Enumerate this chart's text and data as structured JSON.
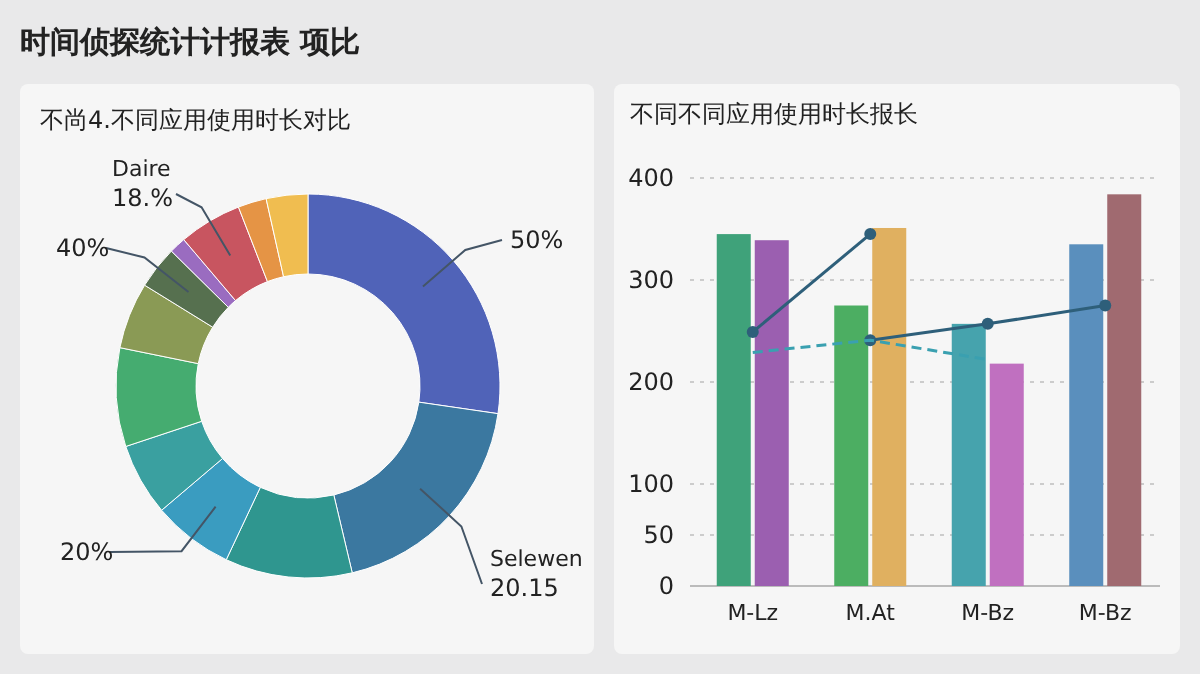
{
  "chart_data": [
    {
      "type": "donut",
      "title": "不尚4.不同应用使用时长对比",
      "annotations": [
        "时间侦探统计计报表 项比",
        "50%",
        "20.15",
        "20%",
        "40%",
        "18.%"
      ],
      "categories": [
        null,
        "Selewen",
        null,
        null,
        null,
        null,
        null,
        null,
        null,
        "Daire",
        null,
        null
      ],
      "values": [
        27.3,
        19,
        10.7,
        6.8,
        6.1,
        8.3,
        5.6,
        3.6,
        1.4,
        5.3,
        2.4,
        3.5
      ],
      "colors": [
        "#5063b8",
        "#3b78a0",
        "#2f968f",
        "#3a9cc0",
        "#3aa0a0",
        "#45ac70",
        "#8a9a55",
        "#56704f",
        "#9a6cc0",
        "#c85560",
        "#e59445",
        "#f0bd50"
      ]
    },
    {
      "type": "bar",
      "title": "不同不同应用使用时长报长",
      "categories": [
        "M-Lz",
        "M.At",
        "M-Bz",
        "M-Bz"
      ],
      "ylim": [
        0,
        400
      ],
      "yticks": [
        0,
        50,
        100,
        200,
        300,
        400
      ],
      "grid": "y",
      "series": [
        {
          "values": [
            345,
            275,
            257,
            335
          ],
          "colors": [
            "#3fa27a",
            "#4cae62",
            "#46a3ad",
            "#5a8fbd"
          ]
        },
        {
          "values": [
            339,
            351,
            218,
            384
          ],
          "colors": [
            "#9b5fb0",
            "#e0b060",
            "#c070c0",
            "#a06a70"
          ]
        },
        {
          "type": "line",
          "values": [
            249,
            345,
            null,
            null
          ],
          "color": "#2e5f7a",
          "marker": "circle"
        },
        {
          "type": "line",
          "values": [
            null,
            241,
            257,
            275
          ],
          "color": "#2e5f7a",
          "marker": "circle"
        },
        {
          "type": "line",
          "values": [
            229,
            241,
            222,
            null
          ],
          "color": "#3aa0b0",
          "line_style": "dashed",
          "marker": "none"
        }
      ]
    }
  ]
}
